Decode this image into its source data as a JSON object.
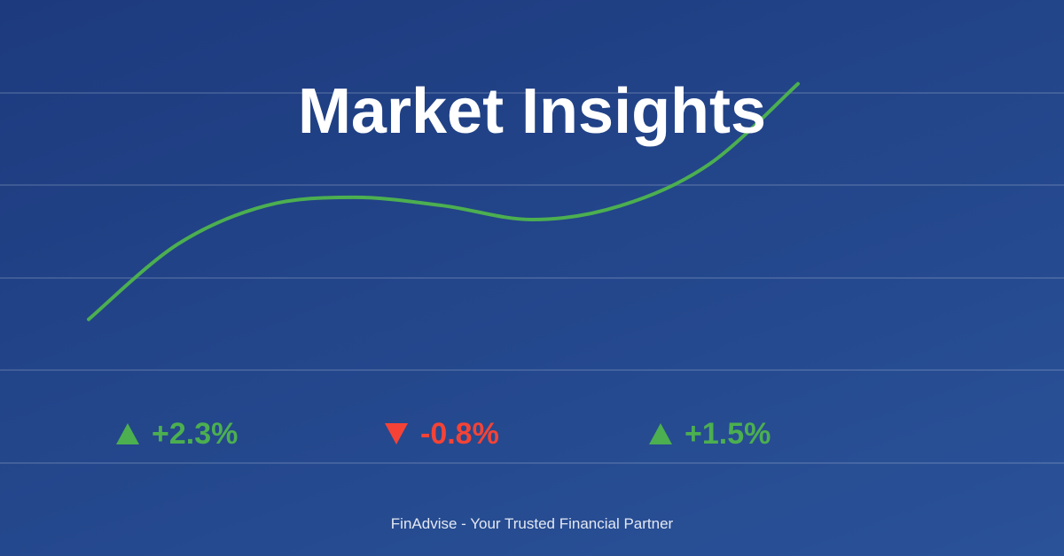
{
  "title": "Market Insights",
  "footer": "FinAdvise - Your Trusted Financial Partner",
  "colors": {
    "up": "#4caf50",
    "down": "#f44336",
    "line": "#4caf50"
  },
  "stats": [
    {
      "direction": "up",
      "arrow_icon": "triangle-up-icon",
      "value": "+2.3%"
    },
    {
      "direction": "down",
      "arrow_icon": "triangle-down-icon",
      "value": "-0.8%"
    },
    {
      "direction": "up",
      "arrow_icon": "triangle-up-icon",
      "value": "+1.5%"
    }
  ],
  "chart_data": {
    "type": "line",
    "title": "",
    "xlabel": "",
    "ylabel": "",
    "grid": true,
    "x": [
      0,
      1,
      2,
      3,
      4,
      5,
      6,
      7,
      8
    ],
    "ylim": [
      0,
      100
    ],
    "series": [
      {
        "values": [
          18,
          45,
          59,
          62,
          59,
          54,
          59,
          74,
          103
        ]
      }
    ]
  }
}
